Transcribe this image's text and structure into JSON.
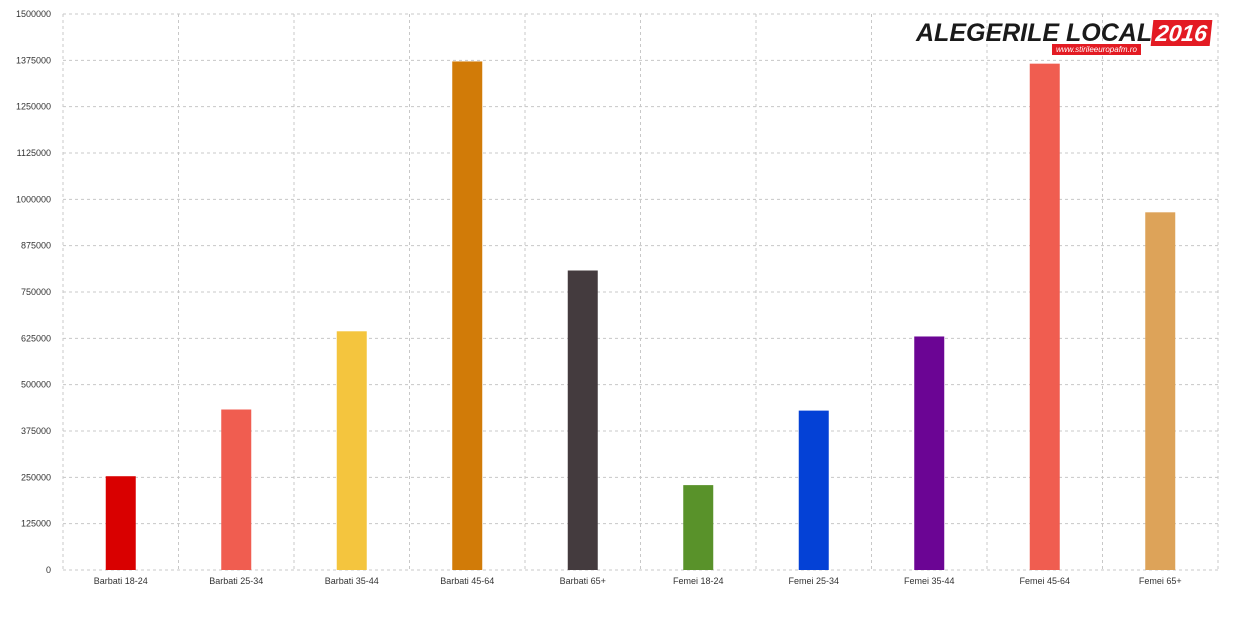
{
  "logo": {
    "title": "ALEGERILE LOCALE",
    "year": "2016",
    "url": "www.stirileeuropafm.ro"
  },
  "chart_data": {
    "type": "bar",
    "categories": [
      "Barbati 18-24",
      "Barbati 25-34",
      "Barbati 35-44",
      "Barbati 45-64",
      "Barbati 65+",
      "Femei 18-24",
      "Femei 25-34",
      "Femei 35-44",
      "Femei 45-64",
      "Femei 65+"
    ],
    "values": [
      253000,
      433000,
      644000,
      1372000,
      808000,
      229000,
      430000,
      630000,
      1366000,
      965000
    ],
    "colors": [
      "#d90000",
      "#f05d50",
      "#f4c53e",
      "#d17b08",
      "#443b3e",
      "#59922a",
      "#0441d6",
      "#6b0594",
      "#f05d50",
      "#dda359"
    ],
    "ylim": [
      0,
      1500000
    ],
    "yticks": [
      "0",
      "125000",
      "250000",
      "375000",
      "500000",
      "625000",
      "750000",
      "875000",
      "1000000",
      "1125000",
      "1250000",
      "1375000",
      "1500000"
    ],
    "grid": true,
    "title": "",
    "xlabel": "",
    "ylabel": ""
  }
}
